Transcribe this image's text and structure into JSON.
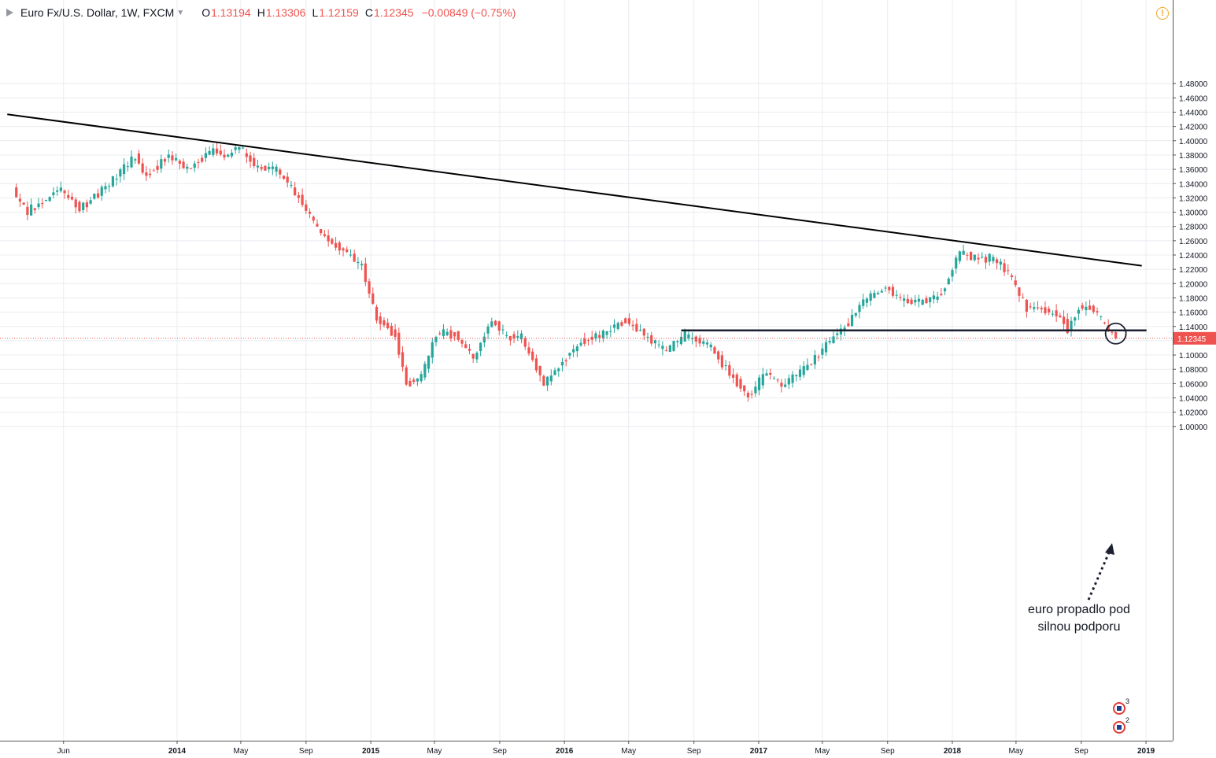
{
  "header": {
    "symbol": "Euro Fx/U.S. Dollar",
    "interval": "1W",
    "source": "FXCM",
    "open_label": "O",
    "open": "1.13194",
    "high_label": "H",
    "high": "1.13306",
    "low_label": "L",
    "low": "1.12159",
    "close_label": "C",
    "close": "1.12345",
    "change": "−0.00849 (−0.75%)"
  },
  "annotation": {
    "line1": "euro propadlo pod",
    "line2": "silnou podporu"
  },
  "events": [
    {
      "count": "3"
    },
    {
      "count": "2"
    }
  ],
  "colors": {
    "up": "#26a69a",
    "down": "#ef5350",
    "grid": "#e9ecf0",
    "line": "#000000",
    "support": "#1c2030",
    "last_price": "#ef5350"
  },
  "chart_data": {
    "type": "candlestick",
    "title": "",
    "xlabel": "",
    "ylabel": "",
    "ylim": [
      0.98,
      1.49
    ],
    "y_ticks": [
      "1.48000",
      "1.46000",
      "1.44000",
      "1.42000",
      "1.40000",
      "1.38000",
      "1.36000",
      "1.34000",
      "1.32000",
      "1.30000",
      "1.28000",
      "1.26000",
      "1.24000",
      "1.22000",
      "1.20000",
      "1.18000",
      "1.16000",
      "1.14000",
      "1.12000",
      "1.10000",
      "1.08000",
      "1.06000",
      "1.04000",
      "1.02000",
      "1.00000"
    ],
    "x_ticks": [
      {
        "label": "Jun",
        "date": "2013-06-01"
      },
      {
        "label": "2014",
        "date": "2014-01-01"
      },
      {
        "label": "May",
        "date": "2014-05-01"
      },
      {
        "label": "Sep",
        "date": "2014-09-01"
      },
      {
        "label": "2015",
        "date": "2015-01-01"
      },
      {
        "label": "May",
        "date": "2015-05-01"
      },
      {
        "label": "Sep",
        "date": "2015-09-01"
      },
      {
        "label": "2016",
        "date": "2016-01-01"
      },
      {
        "label": "May",
        "date": "2016-05-01"
      },
      {
        "label": "Sep",
        "date": "2016-09-01"
      },
      {
        "label": "2017",
        "date": "2017-01-01"
      },
      {
        "label": "May",
        "date": "2017-05-01"
      },
      {
        "label": "Sep",
        "date": "2017-09-01"
      },
      {
        "label": "2018",
        "date": "2018-01-01"
      },
      {
        "label": "May",
        "date": "2018-05-01"
      },
      {
        "label": "Sep",
        "date": "2018-09-01"
      },
      {
        "label": "2019",
        "date": "2019-01-01"
      }
    ],
    "last_price": {
      "label": "1.12345",
      "value": 1.12345
    },
    "anchors": [
      [
        "2013-03-04",
        1.3,
        1.36
      ],
      [
        "2013-04-01",
        1.28,
        1.32
      ],
      [
        "2013-06-03",
        1.32,
        1.345
      ],
      [
        "2013-07-08",
        1.28,
        1.33
      ],
      [
        "2013-09-02",
        1.32,
        1.36
      ],
      [
        "2013-10-21",
        1.37,
        1.385
      ],
      [
        "2013-11-11",
        1.34,
        1.36
      ],
      [
        "2013-12-23",
        1.37,
        1.39
      ],
      [
        "2014-01-27",
        1.35,
        1.37
      ],
      [
        "2014-03-17",
        1.38,
        1.395
      ],
      [
        "2014-04-07",
        1.37,
        1.385
      ],
      [
        "2014-05-05",
        1.385,
        1.4
      ],
      [
        "2014-06-02",
        1.36,
        1.37
      ],
      [
        "2014-07-14",
        1.355,
        1.365
      ],
      [
        "2014-08-25",
        1.315,
        1.325
      ],
      [
        "2014-10-06",
        1.26,
        1.275
      ],
      [
        "2014-11-10",
        1.245,
        1.255
      ],
      [
        "2014-12-22",
        1.22,
        1.23
      ],
      [
        "2015-01-19",
        1.14,
        1.16
      ],
      [
        "2015-02-23",
        1.12,
        1.135
      ],
      [
        "2015-03-16",
        1.05,
        1.07
      ],
      [
        "2015-04-13",
        1.06,
        1.08
      ],
      [
        "2015-05-11",
        1.12,
        1.14
      ],
      [
        "2015-06-15",
        1.12,
        1.14
      ],
      [
        "2015-07-20",
        1.09,
        1.1
      ],
      [
        "2015-08-24",
        1.13,
        1.17
      ],
      [
        "2015-09-21",
        1.12,
        1.13
      ],
      [
        "2015-10-19",
        1.12,
        1.13
      ],
      [
        "2015-11-30",
        1.055,
        1.065
      ],
      [
        "2016-01-04",
        1.08,
        1.1
      ],
      [
        "2016-02-08",
        1.11,
        1.13
      ],
      [
        "2016-03-21",
        1.12,
        1.14
      ],
      [
        "2016-05-02",
        1.14,
        1.16
      ],
      [
        "2016-06-13",
        1.12,
        1.13
      ],
      [
        "2016-07-18",
        1.1,
        1.11
      ],
      [
        "2016-08-22",
        1.12,
        1.135
      ],
      [
        "2016-10-03",
        1.11,
        1.12
      ],
      [
        "2016-11-14",
        1.07,
        1.08
      ],
      [
        "2016-12-19",
        1.04,
        1.045
      ],
      [
        "2017-01-23",
        1.07,
        1.08
      ],
      [
        "2017-02-20",
        1.055,
        1.06
      ],
      [
        "2017-03-27",
        1.07,
        1.08
      ],
      [
        "2017-04-24",
        1.09,
        1.1
      ],
      [
        "2017-05-29",
        1.12,
        1.13
      ],
      [
        "2017-06-26",
        1.14,
        1.15
      ],
      [
        "2017-07-24",
        1.17,
        1.18
      ],
      [
        "2017-09-04",
        1.19,
        1.2
      ],
      [
        "2017-10-09",
        1.17,
        1.18
      ],
      [
        "2017-11-13",
        1.17,
        1.18
      ],
      [
        "2017-12-18",
        1.18,
        1.19
      ],
      [
        "2018-01-22",
        1.24,
        1.25
      ],
      [
        "2018-02-19",
        1.23,
        1.24
      ],
      [
        "2018-03-26",
        1.23,
        1.24
      ],
      [
        "2018-04-23",
        1.21,
        1.22
      ],
      [
        "2018-05-28",
        1.16,
        1.17
      ],
      [
        "2018-06-25",
        1.16,
        1.17
      ],
      [
        "2018-07-30",
        1.15,
        1.16
      ],
      [
        "2018-08-13",
        1.135,
        1.14
      ],
      [
        "2018-09-03",
        1.16,
        1.17
      ],
      [
        "2018-09-24",
        1.16,
        1.175
      ],
      [
        "2018-10-15",
        1.145,
        1.155
      ],
      [
        "2018-11-05",
        1.13194,
        1.12345
      ]
    ],
    "lines": [
      {
        "name": "",
        "from": [
          "2013-02-15",
          1.437
        ],
        "to": [
          "2018-12-24",
          1.225
        ]
      },
      {
        "name": "",
        "from": [
          "2016-08-08",
          1.1345
        ],
        "to": [
          "2019-01-02",
          1.1345
        ]
      }
    ]
  }
}
